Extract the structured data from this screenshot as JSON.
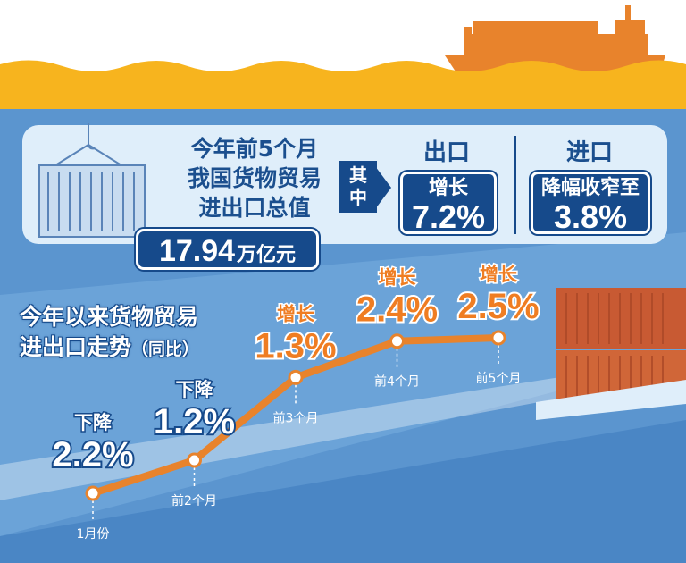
{
  "header": {
    "headline": [
      "今年前5个月",
      "我国货物贸易",
      "进出口总值"
    ],
    "total_value": "17.94",
    "total_unit": "万亿元",
    "qizhong": [
      "其",
      "中"
    ]
  },
  "export": {
    "title": "出口",
    "label": "增长",
    "value": "7.2%"
  },
  "import": {
    "title": "进口",
    "label": "降幅收窄至",
    "value": "3.8%"
  },
  "chart_title": {
    "line1": "今年以来货物贸易",
    "line2": "进出口走势",
    "line2_suffix": "（同比）"
  },
  "colors": {
    "sea_yellow": "#f7b41e",
    "ship_orange": "#e8832c",
    "line_orange": "#e8832c",
    "navy": "#164a8b",
    "panel": "#dfeefa",
    "bg_blue": "#5b95cf",
    "value_orange": "#ef7d22"
  },
  "chart_data": {
    "type": "line",
    "title": "今年以来货物贸易进出口走势（同比）",
    "categories": [
      "1月份",
      "前2个月",
      "前3个月",
      "前4个月",
      "前5个月"
    ],
    "series": [
      {
        "values": [
          -2.2,
          -1.2,
          1.3,
          2.4,
          2.5
        ],
        "labels": [
          "下降",
          "下降",
          "增长",
          "增长",
          "增长"
        ],
        "display": [
          "2.2%",
          "1.2%",
          "1.3%",
          "2.4%",
          "2.5%"
        ]
      }
    ]
  }
}
